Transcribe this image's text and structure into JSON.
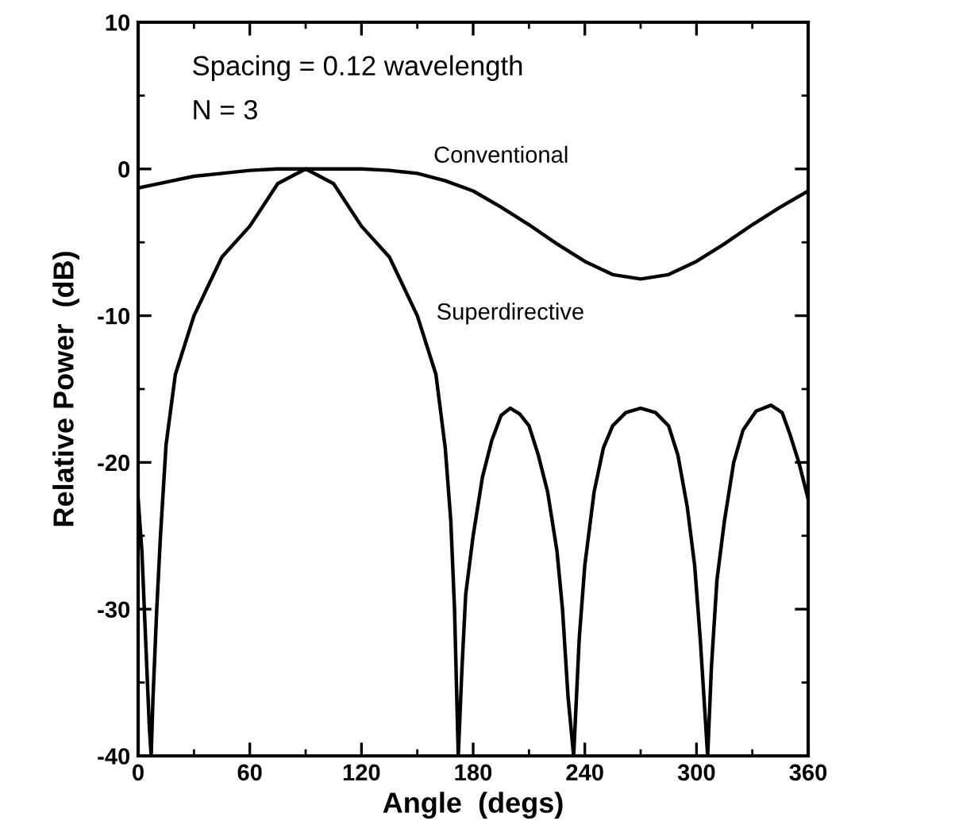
{
  "chart_data": {
    "type": "line",
    "xlabel": "Angle  (degs)",
    "ylabel": "Relative Power  (dB)",
    "annotations": [
      "Spacing = 0.12 wavelength",
      "N = 3"
    ],
    "xlim": [
      0,
      360
    ],
    "xticks": [
      0,
      60,
      120,
      180,
      240,
      300,
      360
    ],
    "ylim": [
      -40,
      10
    ],
    "yticks": [
      -40,
      -30,
      -20,
      -10,
      0,
      10
    ],
    "grid": false,
    "legend": false,
    "marker": "none",
    "line_style": "solid",
    "series": [
      {
        "name": "Conventional",
        "color": "#000000",
        "x": [
          0,
          15,
          30,
          45,
          60,
          75,
          90,
          105,
          120,
          135,
          150,
          165,
          180,
          195,
          210,
          225,
          240,
          255,
          270,
          285,
          300,
          315,
          330,
          345,
          360
        ],
        "values": [
          -1.3,
          -0.9,
          -0.5,
          -0.3,
          -0.1,
          0,
          0,
          0,
          0,
          -0.1,
          -0.3,
          -0.8,
          -1.5,
          -2.6,
          -3.8,
          -5.1,
          -6.3,
          -7.2,
          -7.5,
          -7.2,
          -6.3,
          -5.1,
          -3.8,
          -2.6,
          -1.5
        ]
      },
      {
        "name": "Superdirective",
        "color": "#000000",
        "x": [
          0,
          2,
          4,
          6,
          7,
          8,
          10,
          12,
          15,
          20,
          30,
          45,
          60,
          75,
          90,
          105,
          120,
          135,
          150,
          160,
          165,
          168,
          170,
          172,
          174,
          176,
          180,
          185,
          190,
          195,
          200,
          205,
          210,
          215,
          220,
          225,
          228,
          231,
          234,
          237,
          240,
          245,
          250,
          255,
          262,
          270,
          278,
          285,
          290,
          295,
          299,
          302,
          305,
          306,
          308,
          311,
          315,
          320,
          325,
          332,
          340,
          346,
          350,
          355,
          360
        ],
        "values": [
          -22.5,
          -26,
          -32,
          -38,
          -40,
          -36,
          -30,
          -25,
          -18.8,
          -14,
          -10,
          -6,
          -3.9,
          -1,
          0,
          -1,
          -3.9,
          -6,
          -10,
          -14,
          -19,
          -24,
          -30,
          -40,
          -34,
          -29,
          -25,
          -21,
          -18.5,
          -16.8,
          -16.3,
          -16.7,
          -17.5,
          -19.5,
          -22,
          -26,
          -30,
          -36,
          -40,
          -32,
          -27,
          -22,
          -19,
          -17.5,
          -16.6,
          -16.3,
          -16.6,
          -17.5,
          -19.5,
          -23,
          -27,
          -32,
          -38,
          -40,
          -34,
          -28,
          -24,
          -20,
          -17.8,
          -16.5,
          -16.1,
          -16.6,
          -18,
          -20,
          -22.5
        ]
      }
    ]
  }
}
